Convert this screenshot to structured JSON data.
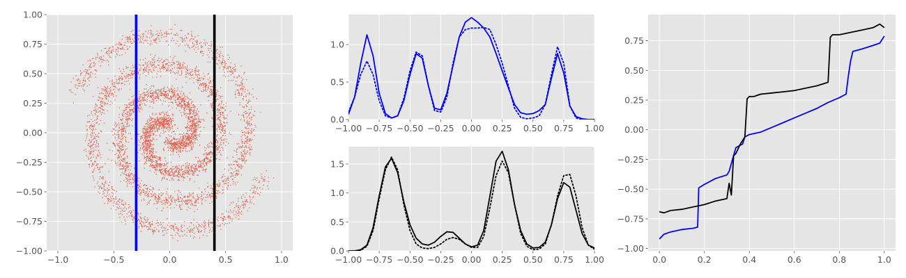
{
  "colors": {
    "panel_bg": "#e5e5e5",
    "grid": "#ffffff",
    "scatter": "#e24a33",
    "blue": "#0000ff",
    "black": "#000000",
    "tick_text": "#555555"
  },
  "chart_data": [
    {
      "type": "scatter",
      "description_source": "two-arm spiral point cloud",
      "xlim": [
        -1.1,
        1.1
      ],
      "ylim": [
        -1.0,
        1.0
      ],
      "xticks": [
        -1.0,
        -0.5,
        0.0,
        0.5,
        1.0
      ],
      "xtick_labels": [
        "−1.0",
        "−0.5",
        "0.0",
        "0.5",
        "1.0"
      ],
      "yticks": [
        -1.0,
        -0.75,
        -0.5,
        -0.25,
        0.0,
        0.25,
        0.5,
        0.75,
        1.0
      ],
      "ytick_labels": [
        "−1.00",
        "−0.75",
        "−0.50",
        "−0.25",
        "0.00",
        "0.25",
        "0.50",
        "0.75",
        "1.00"
      ],
      "spiral": {
        "r0": 0.075,
        "r1": 0.915,
        "theta_span": 10.6,
        "arm_phases": [
          1.5708,
          4.7124
        ]
      },
      "vlines": [
        {
          "x": -0.3,
          "color": "#0000ff"
        },
        {
          "x": 0.4,
          "color": "#000000"
        }
      ],
      "grid": true
    },
    {
      "type": "line",
      "xlim": [
        -1.0,
        1.0
      ],
      "ylim": [
        0.0,
        1.4
      ],
      "xticks": [
        -1.0,
        -0.75,
        -0.5,
        -0.25,
        0.0,
        0.25,
        0.5,
        0.75,
        1.0
      ],
      "xtick_labels": [
        "−1.00",
        "−0.75",
        "−0.50",
        "−0.25",
        "0.00",
        "0.25",
        "0.50",
        "0.75",
        "1.00"
      ],
      "yticks": [
        0.0,
        0.5,
        1.0
      ],
      "ytick_labels": [
        "0.0",
        "0.5",
        "1.0"
      ],
      "grid": true,
      "series": [
        {
          "style": "solid",
          "color": "#0000ff",
          "x": [
            -1.0,
            -0.95,
            -0.9,
            -0.85,
            -0.8,
            -0.75,
            -0.7,
            -0.65,
            -0.6,
            -0.55,
            -0.5,
            -0.45,
            -0.4,
            -0.35,
            -0.3,
            -0.25,
            -0.2,
            -0.15,
            -0.1,
            -0.05,
            0.0,
            0.05,
            0.1,
            0.15,
            0.2,
            0.25,
            0.3,
            0.35,
            0.4,
            0.45,
            0.5,
            0.55,
            0.6,
            0.65,
            0.7,
            0.75,
            0.8,
            0.85,
            0.9,
            0.95,
            1.0
          ],
          "y": [
            0.07,
            0.3,
            0.75,
            1.13,
            0.85,
            0.35,
            0.08,
            0.02,
            0.05,
            0.25,
            0.6,
            0.88,
            0.82,
            0.45,
            0.15,
            0.13,
            0.35,
            0.72,
            1.1,
            1.3,
            1.36,
            1.3,
            1.22,
            1.1,
            0.88,
            0.65,
            0.42,
            0.2,
            0.09,
            0.07,
            0.08,
            0.12,
            0.2,
            0.55,
            0.88,
            0.62,
            0.18,
            0.04,
            0.01,
            0.0,
            0.0
          ]
        },
        {
          "style": "dotted",
          "color": "#0000ff",
          "x": [
            -1.0,
            -0.95,
            -0.9,
            -0.85,
            -0.8,
            -0.75,
            -0.7,
            -0.65,
            -0.6,
            -0.55,
            -0.5,
            -0.45,
            -0.4,
            -0.35,
            -0.3,
            -0.25,
            -0.2,
            -0.15,
            -0.1,
            -0.05,
            0.0,
            0.05,
            0.1,
            0.15,
            0.2,
            0.25,
            0.3,
            0.35,
            0.4,
            0.45,
            0.5,
            0.55,
            0.6,
            0.65,
            0.7,
            0.75,
            0.8,
            0.85,
            0.9,
            0.95,
            1.0
          ],
          "y": [
            0.1,
            0.3,
            0.6,
            0.78,
            0.6,
            0.25,
            0.05,
            0.02,
            0.05,
            0.28,
            0.65,
            0.9,
            0.85,
            0.45,
            0.12,
            0.1,
            0.3,
            0.75,
            1.1,
            1.2,
            1.22,
            1.22,
            1.23,
            1.2,
            1.0,
            0.75,
            0.45,
            0.15,
            0.03,
            0.01,
            0.02,
            0.05,
            0.2,
            0.6,
            0.97,
            0.75,
            0.18,
            0.02,
            0.0,
            0.0,
            0.0
          ]
        }
      ]
    },
    {
      "type": "line",
      "xlim": [
        -1.0,
        1.0
      ],
      "ylim": [
        0.0,
        1.8
      ],
      "xticks": [
        -1.0,
        -0.75,
        -0.5,
        -0.25,
        0.0,
        0.25,
        0.5,
        0.75,
        1.0
      ],
      "xtick_labels": [
        "−1.00",
        "−0.75",
        "−0.50",
        "−0.25",
        "0.00",
        "0.25",
        "0.50",
        "0.75",
        "1.00"
      ],
      "yticks": [
        0.0,
        0.5,
        1.0,
        1.5
      ],
      "ytick_labels": [
        "0.0",
        "0.5",
        "1.0",
        "1.5"
      ],
      "grid": true,
      "series": [
        {
          "style": "solid",
          "color": "#000000",
          "x": [
            -1.0,
            -0.95,
            -0.9,
            -0.85,
            -0.8,
            -0.75,
            -0.7,
            -0.65,
            -0.6,
            -0.55,
            -0.5,
            -0.45,
            -0.4,
            -0.35,
            -0.3,
            -0.25,
            -0.2,
            -0.15,
            -0.1,
            -0.05,
            0.0,
            0.05,
            0.1,
            0.15,
            0.2,
            0.25,
            0.3,
            0.35,
            0.4,
            0.45,
            0.5,
            0.55,
            0.6,
            0.65,
            0.7,
            0.75,
            0.8,
            0.85,
            0.9,
            0.95,
            1.0
          ],
          "y": [
            0.0,
            0.0,
            0.02,
            0.1,
            0.4,
            0.95,
            1.45,
            1.6,
            1.35,
            0.85,
            0.45,
            0.22,
            0.12,
            0.1,
            0.15,
            0.25,
            0.33,
            0.32,
            0.22,
            0.12,
            0.07,
            0.1,
            0.35,
            0.95,
            1.55,
            1.72,
            1.4,
            0.8,
            0.35,
            0.12,
            0.05,
            0.06,
            0.15,
            0.45,
            0.9,
            1.18,
            1.1,
            0.7,
            0.3,
            0.1,
            0.05
          ]
        },
        {
          "style": "dotted",
          "color": "#000000",
          "x": [
            -1.0,
            -0.95,
            -0.9,
            -0.85,
            -0.8,
            -0.75,
            -0.7,
            -0.65,
            -0.6,
            -0.55,
            -0.5,
            -0.45,
            -0.4,
            -0.35,
            -0.3,
            -0.25,
            -0.2,
            -0.15,
            -0.1,
            -0.05,
            0.0,
            0.05,
            0.1,
            0.15,
            0.2,
            0.25,
            0.3,
            0.35,
            0.4,
            0.45,
            0.5,
            0.55,
            0.6,
            0.65,
            0.7,
            0.75,
            0.8,
            0.85,
            0.9,
            0.95,
            1.0
          ],
          "y": [
            0.0,
            0.0,
            0.01,
            0.08,
            0.35,
            0.9,
            1.4,
            1.62,
            1.4,
            0.8,
            0.35,
            0.12,
            0.05,
            0.04,
            0.06,
            0.12,
            0.2,
            0.23,
            0.2,
            0.12,
            0.06,
            0.06,
            0.25,
            0.75,
            1.3,
            1.55,
            1.35,
            0.8,
            0.3,
            0.08,
            0.02,
            0.03,
            0.12,
            0.45,
            0.95,
            1.3,
            1.32,
            0.95,
            0.4,
            0.1,
            0.03
          ]
        }
      ]
    },
    {
      "type": "line",
      "xlim": [
        -0.05,
        1.05
      ],
      "ylim": [
        -1.02,
        0.97
      ],
      "xticks": [
        0.0,
        0.2,
        0.4,
        0.6,
        0.8,
        1.0
      ],
      "xtick_labels": [
        "0.0",
        "0.2",
        "0.4",
        "0.6",
        "0.8",
        "1.0"
      ],
      "yticks": [
        -1.0,
        -0.75,
        -0.5,
        -0.25,
        0.0,
        0.25,
        0.5,
        0.75
      ],
      "ytick_labels": [
        "−1.00",
        "−0.75",
        "−0.50",
        "−0.25",
        "0.00",
        "0.25",
        "0.50",
        "0.75"
      ],
      "grid": true,
      "series": [
        {
          "style": "solid",
          "color": "#0000ff",
          "x": [
            0.0,
            0.02,
            0.05,
            0.1,
            0.15,
            0.17,
            0.175,
            0.2,
            0.25,
            0.3,
            0.31,
            0.34,
            0.37,
            0.38,
            0.4,
            0.45,
            0.5,
            0.55,
            0.6,
            0.65,
            0.7,
            0.75,
            0.8,
            0.83,
            0.84,
            0.85,
            0.86,
            0.9,
            0.95,
            0.98,
            1.0
          ],
          "y": [
            -0.92,
            -0.88,
            -0.86,
            -0.84,
            -0.83,
            -0.82,
            -0.49,
            -0.46,
            -0.41,
            -0.38,
            -0.35,
            -0.15,
            -0.12,
            -0.06,
            -0.04,
            -0.02,
            0.02,
            0.06,
            0.1,
            0.14,
            0.18,
            0.23,
            0.27,
            0.3,
            0.45,
            0.58,
            0.66,
            0.68,
            0.71,
            0.73,
            0.79
          ]
        },
        {
          "style": "solid",
          "color": "#000000",
          "x": [
            0.0,
            0.02,
            0.05,
            0.1,
            0.15,
            0.2,
            0.25,
            0.3,
            0.31,
            0.32,
            0.33,
            0.34,
            0.36,
            0.38,
            0.39,
            0.4,
            0.42,
            0.45,
            0.5,
            0.55,
            0.6,
            0.65,
            0.7,
            0.75,
            0.76,
            0.77,
            0.8,
            0.85,
            0.9,
            0.95,
            0.98,
            1.0
          ],
          "y": [
            -0.69,
            -0.7,
            -0.68,
            -0.67,
            -0.65,
            -0.63,
            -0.6,
            -0.58,
            -0.45,
            -0.55,
            -0.22,
            -0.2,
            -0.12,
            -0.06,
            0.26,
            0.28,
            0.28,
            0.3,
            0.31,
            0.32,
            0.33,
            0.35,
            0.37,
            0.4,
            0.78,
            0.8,
            0.8,
            0.82,
            0.84,
            0.86,
            0.89,
            0.86
          ]
        }
      ]
    }
  ]
}
